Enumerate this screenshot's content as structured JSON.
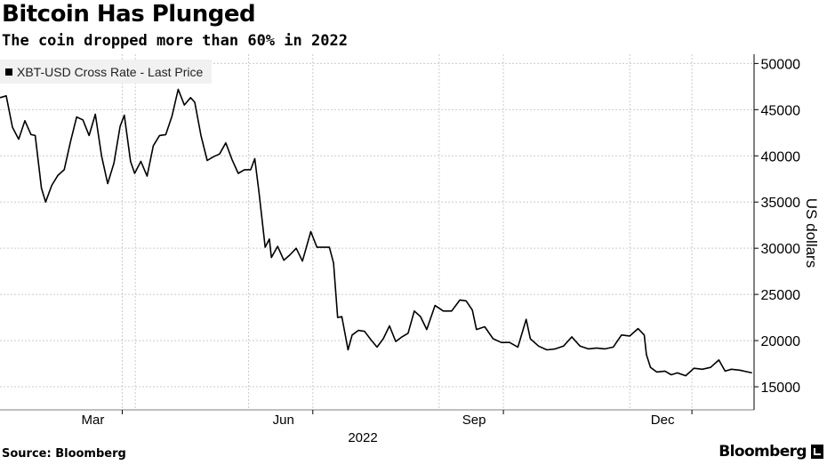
{
  "header": {
    "title": "Bitcoin Has Plunged",
    "subtitle": "The coin dropped more than 60% in 2022"
  },
  "legend": {
    "series_name": "XBT-USD Cross Rate - Last Price"
  },
  "footer": {
    "source": "Source: Bloomberg",
    "brand": "Bloomberg"
  },
  "colors": {
    "line": "#000000",
    "grid": "#cccccc",
    "legend_bg": "#f1f1f1"
  },
  "chart_data": {
    "type": "line",
    "title": "Bitcoin Has Plunged",
    "subtitle": "The coin dropped more than 60% in 2022",
    "ylabel": "US dollars",
    "xlabel": "2022",
    "ylim": [
      12500,
      51000
    ],
    "y_ticks": [
      15000,
      20000,
      25000,
      30000,
      35000,
      40000,
      45000,
      50000
    ],
    "x_ticks": [
      "Mar",
      "Jun",
      "Sep",
      "Dec"
    ],
    "year_label": "2022",
    "grid": true,
    "legend_position": "top-left",
    "y_axis_position": "right",
    "series": [
      {
        "name": "XBT-USD Cross Rate - Last Price",
        "x": [
          "2022-01-01",
          "2022-01-04",
          "2022-01-07",
          "2022-01-10",
          "2022-01-13",
          "2022-01-16",
          "2022-01-18",
          "2022-01-21",
          "2022-01-23",
          "2022-01-26",
          "2022-01-29",
          "2022-02-01",
          "2022-02-04",
          "2022-02-07",
          "2022-02-10",
          "2022-02-13",
          "2022-02-16",
          "2022-02-19",
          "2022-02-22",
          "2022-02-25",
          "2022-02-28",
          "2022-03-02",
          "2022-03-05",
          "2022-03-07",
          "2022-03-10",
          "2022-03-13",
          "2022-03-16",
          "2022-03-19",
          "2022-03-22",
          "2022-03-25",
          "2022-03-28",
          "2022-03-31",
          "2022-04-03",
          "2022-04-05",
          "2022-04-08",
          "2022-04-11",
          "2022-04-14",
          "2022-04-17",
          "2022-04-20",
          "2022-04-23",
          "2022-04-26",
          "2022-04-29",
          "2022-05-02",
          "2022-05-04",
          "2022-05-06",
          "2022-05-09",
          "2022-05-11",
          "2022-05-12",
          "2022-05-15",
          "2022-05-18",
          "2022-05-21",
          "2022-05-24",
          "2022-05-27",
          "2022-05-31",
          "2022-06-03",
          "2022-06-06",
          "2022-06-09",
          "2022-06-11",
          "2022-06-13",
          "2022-06-15",
          "2022-06-18",
          "2022-06-20",
          "2022-06-23",
          "2022-06-26",
          "2022-06-29",
          "2022-07-02",
          "2022-07-05",
          "2022-07-08",
          "2022-07-11",
          "2022-07-14",
          "2022-07-17",
          "2022-07-20",
          "2022-07-23",
          "2022-07-26",
          "2022-07-30",
          "2022-08-03",
          "2022-08-07",
          "2022-08-11",
          "2022-08-14",
          "2022-08-17",
          "2022-08-19",
          "2022-08-23",
          "2022-08-27",
          "2022-08-31",
          "2022-09-04",
          "2022-09-08",
          "2022-09-12",
          "2022-09-14",
          "2022-09-18",
          "2022-09-22",
          "2022-09-26",
          "2022-09-30",
          "2022-10-04",
          "2022-10-08",
          "2022-10-12",
          "2022-10-16",
          "2022-10-20",
          "2022-10-24",
          "2022-10-28",
          "2022-11-01",
          "2022-11-05",
          "2022-11-08",
          "2022-11-09",
          "2022-11-11",
          "2022-11-14",
          "2022-11-18",
          "2022-11-21",
          "2022-11-24",
          "2022-11-28",
          "2022-12-02",
          "2022-12-06",
          "2022-12-10",
          "2022-12-14",
          "2022-12-17",
          "2022-12-20",
          "2022-12-24",
          "2022-12-28",
          "2022-12-30"
        ],
        "values": [
          46300,
          46500,
          43100,
          41800,
          43800,
          42300,
          42200,
          36500,
          35000,
          36800,
          37900,
          38500,
          41500,
          44200,
          43900,
          42200,
          44500,
          40000,
          37000,
          39200,
          43200,
          44400,
          39400,
          38100,
          39400,
          37800,
          41100,
          42200,
          42300,
          44300,
          47200,
          45500,
          46300,
          45800,
          42200,
          39500,
          39900,
          40200,
          41400,
          39600,
          38100,
          38500,
          38500,
          39700,
          36100,
          30100,
          31000,
          29000,
          30200,
          28700,
          29300,
          30000,
          28600,
          31800,
          30100,
          30100,
          30100,
          28400,
          22500,
          22600,
          19000,
          20600,
          21100,
          21000,
          20100,
          19300,
          20200,
          21600,
          19900,
          20400,
          20800,
          23200,
          22600,
          21200,
          23800,
          23200,
          23200,
          24400,
          24300,
          23300,
          21200,
          21500,
          20200,
          19800,
          19800,
          19300,
          22300,
          20200,
          19400,
          19000,
          19100,
          19400,
          20400,
          19400,
          19100,
          19200,
          19100,
          19300,
          20600,
          20500,
          21300,
          20600,
          18500,
          17100,
          16600,
          16700,
          16300,
          16500,
          16200,
          17000,
          16900,
          17100,
          17900,
          16700,
          16900,
          16800,
          16600,
          16500
        ]
      }
    ]
  }
}
